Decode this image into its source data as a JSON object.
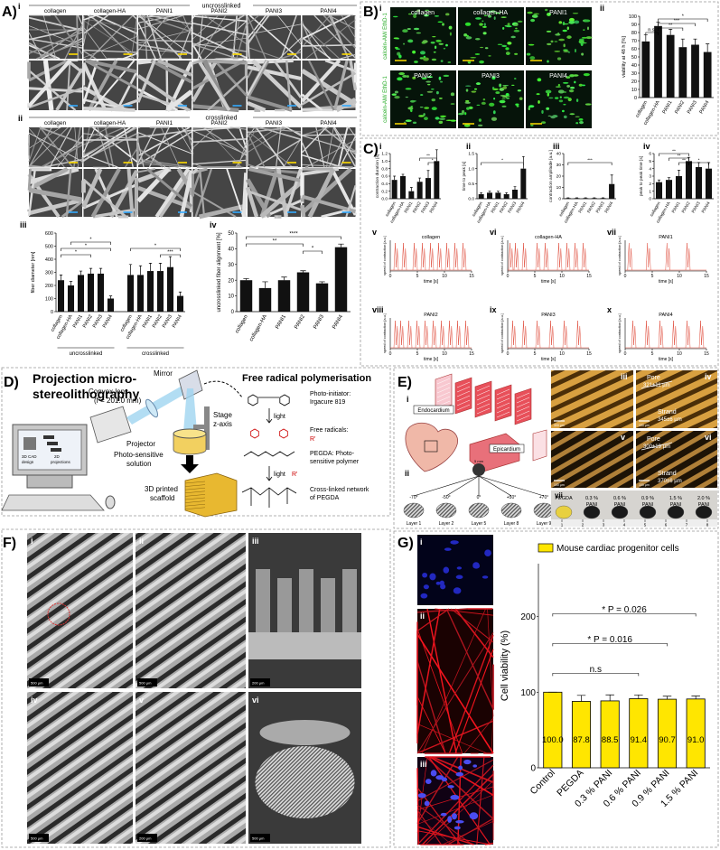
{
  "figure": {
    "A": {
      "label": "A)",
      "i": {
        "label": "i",
        "header": "uncrosslinked",
        "columns": [
          "collagen",
          "collagen-HA",
          "PANI1",
          "PANI2",
          "PANI3",
          "PANI4"
        ]
      },
      "ii": {
        "label": "ii",
        "header": "crosslinked",
        "columns": [
          "collagen",
          "collagen-HA",
          "PANI1",
          "PANI2",
          "PANI3",
          "PANI4"
        ]
      },
      "iii": {
        "label": "iii",
        "ylabel": "fiber diameter [nm]",
        "categories": [
          "collagen",
          "collagen-HA",
          "PANI1",
          "PANI2",
          "PANI3",
          "PANI4"
        ],
        "groups": [
          "uncrosslinked",
          "crosslinked"
        ],
        "values": [
          [
            240,
            200,
            280,
            290,
            290,
            100
          ],
          [
            280,
            280,
            310,
            310,
            340,
            120
          ]
        ],
        "errors": [
          [
            40,
            30,
            30,
            40,
            40,
            20
          ],
          [
            80,
            70,
            60,
            60,
            80,
            30
          ]
        ],
        "ylim": [
          0,
          600
        ],
        "yticks": [
          0,
          100,
          200,
          300,
          400,
          500,
          600
        ],
        "color": "#111",
        "annotations": [
          "*",
          "*",
          "*",
          "*",
          "***"
        ]
      },
      "iv": {
        "label": "iv",
        "ylabel": "uncrosslinked fiber alignment [%]",
        "categories": [
          "collagen",
          "collagen-HA",
          "PANI1",
          "PANI2",
          "PANI3",
          "PANI4"
        ],
        "values": [
          20,
          15,
          20,
          25,
          18,
          41
        ],
        "errors": [
          1,
          4,
          2,
          1,
          1,
          2
        ],
        "ylim": [
          0,
          50
        ],
        "yticks": [
          0,
          10,
          20,
          30,
          40,
          50
        ],
        "color": "#111",
        "annotations": [
          "****",
          "**",
          "*"
        ]
      }
    },
    "B": {
      "label": "B)",
      "i": {
        "label": "i",
        "stain": [
          "calcein-AM/ EthD-1",
          "calcein-AM/ EthD-1"
        ],
        "columns": [
          [
            "collagen",
            "collagen-HA",
            "PANI1"
          ],
          [
            "PANI2",
            "PANI3",
            "PANI4"
          ]
        ]
      },
      "ii": {
        "label": "ii",
        "ylabel": "viability at 48 h [%]",
        "categories": [
          "collagen",
          "collagen-HA",
          "PANI1",
          "PANI2",
          "PANI3",
          "PANI4"
        ],
        "values": [
          69,
          88,
          77,
          62,
          65,
          56
        ],
        "errors": [
          8,
          5,
          7,
          10,
          7,
          10
        ],
        "ylim": [
          0,
          100
        ],
        "yticks": [
          0,
          10,
          20,
          30,
          40,
          50,
          60,
          70,
          80,
          90,
          100
        ],
        "color": "#111",
        "annotations": [
          "n.s.",
          "**",
          "***",
          "*"
        ]
      }
    },
    "C": {
      "label": "C)",
      "bars": [
        {
          "label": "i",
          "ylabel": "contraction duration [s]",
          "categories": [
            "collagen",
            "collagen-HA",
            "PANI1",
            "PANI2",
            "PANI3",
            "PANI4"
          ],
          "values": [
            0.5,
            0.6,
            0.2,
            0.45,
            0.55,
            1.0
          ],
          "errors": [
            0.1,
            0.05,
            0.1,
            0.1,
            0.2,
            0.3
          ],
          "ylim": [
            0,
            1.2
          ],
          "yticks": [
            {
              "value": 0,
              "label": "0.0"
            },
            0.2,
            0.4,
            0.6,
            0.8,
            {
              "value": 1,
              "label": "1.0"
            },
            1.2
          ],
          "color": "#111",
          "annotations": [
            "**",
            "*"
          ]
        },
        {
          "label": "ii",
          "ylabel": "time to peak [s]",
          "categories": [
            "collagen",
            "collagen-HA",
            "PANI1",
            "PANI2",
            "PANI3",
            "PANI4"
          ],
          "values": [
            0.15,
            0.2,
            0.2,
            0.15,
            0.3,
            1.0
          ],
          "errors": [
            0.05,
            0.05,
            0.05,
            0.05,
            0.1,
            0.4
          ],
          "ylim": [
            0,
            1.5
          ],
          "yticks": [
            {
              "value": 0,
              "label": "0.0"
            },
            0.5,
            {
              "value": 1,
              "label": "1.0"
            },
            1.5
          ],
          "color": "#111",
          "annotations": [
            "*"
          ]
        },
        {
          "label": "iii",
          "ylabel": "contraction amplitude [a.u.]",
          "categories": [
            "collagen",
            "collagen-HA",
            "PANI1",
            "PANI2",
            "PANI3",
            "PANI4"
          ],
          "values": [
            0.5,
            0.5,
            0.5,
            0.5,
            0.5,
            13
          ],
          "errors": [
            0.3,
            0.3,
            0.3,
            0.3,
            0.3,
            8
          ],
          "ylim": [
            0,
            40
          ],
          "yticks": [
            0,
            10,
            20,
            30,
            40
          ],
          "color": "#111",
          "annotations": [
            "***"
          ]
        },
        {
          "label": "iv",
          "ylabel": "peak to peak time [s]",
          "categories": [
            "collagen",
            "collagen-HA",
            "PANI1",
            "PANI2",
            "PANI3",
            "PANI4"
          ],
          "values": [
            2.2,
            2.5,
            3.0,
            5.0,
            4.2,
            4.0
          ],
          "errors": [
            0.3,
            0.3,
            0.8,
            0.5,
            0.6,
            0.8
          ],
          "ylim": [
            0,
            6
          ],
          "yticks": [
            0,
            1,
            2,
            3,
            4,
            5,
            6
          ],
          "color": "#111",
          "annotations": [
            "**",
            "**",
            "**",
            "*"
          ]
        }
      ],
      "traces": {
        "xlabel": "time [s]",
        "ylabel": "speed of contraction [a.u.]",
        "xlim": [
          0,
          15
        ],
        "xticks": [
          0,
          5,
          10,
          15
        ],
        "items": [
          {
            "label": "v",
            "title": "collagen",
            "peaks": [
              1,
              2.5,
              4.5,
              6,
              7.5,
              9,
              10.5,
              12,
              13.5
            ]
          },
          {
            "label": "vi",
            "title": "collagen-HA",
            "peaks": [
              0.5,
              1.5,
              3,
              5.5,
              7,
              9.5,
              11,
              12.5,
              14
            ]
          },
          {
            "label": "vii",
            "title": "PANI1",
            "peaks": [
              0.8,
              4.2,
              7.8,
              11.5
            ]
          },
          {
            "label": "viii",
            "title": "PANI2",
            "peaks": [
              1,
              2,
              3.5,
              5,
              6.5,
              8,
              9.5,
              11,
              12.5,
              14
            ]
          },
          {
            "label": "ix",
            "title": "PANI3",
            "peaks": [
              1,
              3,
              5.5,
              8,
              10.5,
              13
            ]
          },
          {
            "label": "x",
            "title": "PANI4",
            "peaks": [
              1.5,
              4,
              6.5,
              9,
              11.5,
              14
            ]
          }
        ]
      }
    },
    "D": {
      "label": "D)",
      "title": [
        "Projection micro-",
        "stereolithography"
      ],
      "chem_title": "Free radical polymerisation",
      "mirror": "Mirror",
      "lens": [
        "Convex lens",
        "(f = 201.0 mm)"
      ],
      "projector": "Projector",
      "cad": [
        "3D CAD",
        "design"
      ],
      "projections": [
        "2D",
        "projections"
      ],
      "stage": [
        "Stage",
        "z-axis"
      ],
      "solution": [
        "Photo-sensitive",
        "solution"
      ],
      "scaffold": [
        "3D printed",
        "scaffold"
      ],
      "initiator": [
        "Photo-initiator:",
        "Irgacure 819"
      ],
      "light": "light",
      "radicals": [
        "Free radicals:",
        "R'"
      ],
      "pegda": [
        "PEGDA: Photo-",
        "sensitive polymer"
      ],
      "network": [
        "Cross-linked network",
        "of PEGDA"
      ]
    },
    "E": {
      "label": "E)",
      "i": {
        "label": "i",
        "endo": "Endocardium",
        "epi": "Epicardium"
      },
      "ii": {
        "label": "ii",
        "scale": "5 mm",
        "angles": [
          "-70°",
          "-50°",
          "0°",
          "+50°",
          "+70°"
        ],
        "layers": [
          "Layer 1",
          "Layer 2",
          "Layer 5",
          "Layer 8",
          "Layer 9"
        ]
      },
      "iii": {
        "label": "iii",
        "scale": "300 µm"
      },
      "iv": {
        "label": "iv",
        "scale": "100 µm",
        "pore": "Pore",
        "pore_size": "321±11 µm",
        "strand": "Strand",
        "strand_size": "345±6 µm"
      },
      "v": {
        "label": "v",
        "scale": "100 µm"
      },
      "vi": {
        "label": "vi",
        "scale": "100 µm",
        "pore": "Pore",
        "pore_size": "300±19 µm",
        "strand": "Strand",
        "strand_size": "370±6 µm"
      },
      "vii": {
        "label": "vii",
        "samples": [
          "PEGDA",
          "0.3 %",
          "0.6 %",
          "0.9 %",
          "1.5 %",
          "2.0 %"
        ],
        "material": "PANI",
        "ruler": [
          1,
          2,
          3,
          4,
          5,
          6,
          7,
          8
        ]
      }
    },
    "F": {
      "label": "F)",
      "images": [
        {
          "label": "i",
          "scale": "500 µm"
        },
        {
          "label": "ii",
          "scale": "500 µm"
        },
        {
          "label": "iii",
          "scale": "200 µm"
        },
        {
          "label": "iv",
          "scale": "500 µm"
        },
        {
          "label": "v",
          "scale": "200 µm"
        },
        {
          "label": "vi",
          "scale": "500 µm"
        }
      ]
    },
    "G": {
      "label": "G)",
      "images": [
        "i",
        "ii",
        "iii"
      ],
      "chart": {
        "legend": "Mouse cardiac progenitor cells",
        "ylabel": "Cell viability (%)",
        "categories": [
          "Control",
          "PEGDA",
          "0.3 % PANI",
          "0.6 % PANI",
          "0.9 % PANI",
          "1.5 % PANI"
        ],
        "values": [
          100,
          87.8,
          88.5,
          91.4,
          90.7,
          91.0
        ],
        "value_labels": [
          "100.0",
          "87.8",
          "88.5",
          "91.4",
          "90.7",
          "91.0"
        ],
        "errors": [
          0,
          8,
          8,
          5,
          4,
          4
        ],
        "ylim": [
          0,
          270
        ],
        "yticks": [
          0,
          100,
          200
        ],
        "color": "#ffe600",
        "annotations": [
          "* P = 0.026",
          "* P = 0.016",
          "n.s"
        ]
      }
    }
  }
}
